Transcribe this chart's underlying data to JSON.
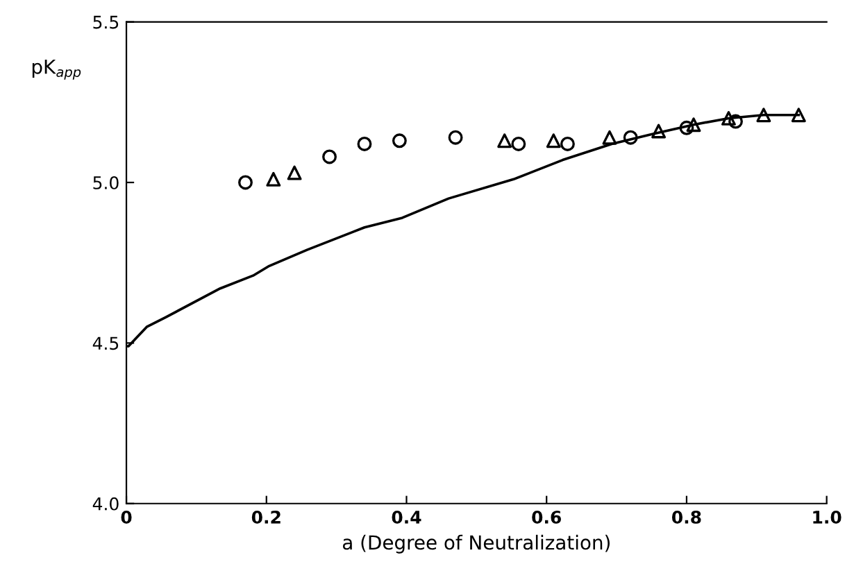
{
  "chart_data": {
    "type": "scatter",
    "xlabel": "a (Degree of Neutralization)",
    "ylabel": "pK$_{app}$",
    "xlim": [
      0,
      1.0
    ],
    "ylim": [
      4.0,
      5.5
    ],
    "xticks": [
      0,
      0.2,
      0.4,
      0.6,
      0.8,
      {
        "value": 1,
        "label": "1.0"
      }
    ],
    "yticks": [
      {
        "value": 4,
        "label": "4.0"
      },
      4.5,
      {
        "value": 5,
        "label": "5.0"
      },
      5.5
    ],
    "grid": false,
    "legend": false,
    "series": [
      {
        "type": "line",
        "color": "#000000",
        "marker": "none",
        "x": [
          0.0,
          0.003,
          0.029,
          0.056,
          0.134,
          0.181,
          0.204,
          0.258,
          0.34,
          0.394,
          0.46,
          0.553,
          0.623,
          0.693,
          0.75,
          0.81,
          0.86,
          0.91,
          0.96
        ],
        "values": [
          4.49,
          4.49,
          4.55,
          4.58,
          4.67,
          4.71,
          4.74,
          4.79,
          4.86,
          4.89,
          4.95,
          5.01,
          5.07,
          5.12,
          5.15,
          5.18,
          5.2,
          5.21,
          5.21
        ]
      },
      {
        "color": "#000000",
        "marker": "circle",
        "x": [
          0.17,
          0.29,
          0.34,
          0.39,
          0.47,
          0.56,
          0.63,
          0.72,
          0.8,
          0.87
        ],
        "values": [
          5.0,
          5.08,
          5.12,
          5.13,
          5.14,
          5.12,
          5.12,
          5.14,
          5.17,
          5.19
        ]
      },
      {
        "color": "#000000",
        "marker": "triangle",
        "x": [
          0.21,
          0.24,
          0.54,
          0.61,
          0.69,
          0.76,
          0.81,
          0.86,
          0.91,
          0.96
        ],
        "values": [
          5.01,
          5.03,
          5.13,
          5.13,
          5.14,
          5.16,
          5.18,
          5.2,
          5.21,
          5.21
        ]
      }
    ]
  }
}
